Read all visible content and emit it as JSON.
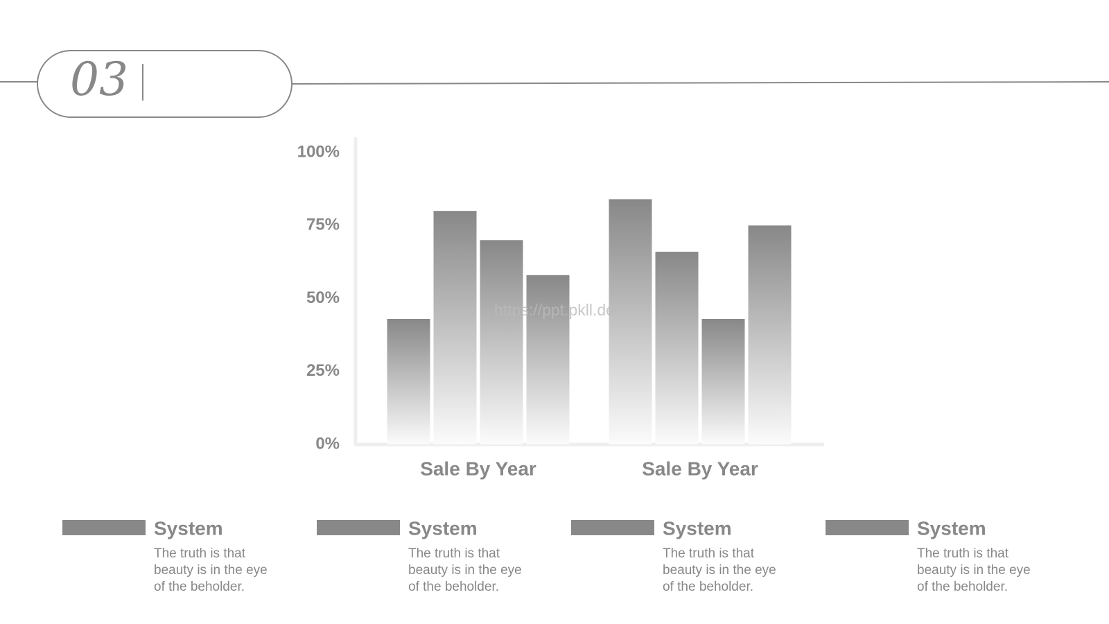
{
  "header": {
    "number": "03"
  },
  "watermark": "https://ppt.pkll.de",
  "chart_data": {
    "type": "bar",
    "categories": [
      "Sale By Year",
      "Sale By Year"
    ],
    "series": [
      {
        "name": "System",
        "color": "#888888",
        "values": [
          43,
          84
        ]
      },
      {
        "name": "System",
        "color": "#888888",
        "values": [
          80,
          66
        ]
      },
      {
        "name": "System",
        "color": "#888888",
        "values": [
          70,
          43
        ]
      },
      {
        "name": "System",
        "color": "#888888",
        "values": [
          58,
          75
        ]
      }
    ],
    "ylim": [
      0,
      100
    ],
    "yticks": [
      {
        "value": 0,
        "label": "0%"
      },
      {
        "value": 25,
        "label": "25%"
      },
      {
        "value": 50,
        "label": "50%"
      },
      {
        "value": 75,
        "label": "75%"
      },
      {
        "value": 100,
        "label": "100%"
      }
    ],
    "grid": false
  },
  "notes": [
    [
      "The truth is that",
      "beauty is in the eye",
      "of the beholder."
    ],
    [
      "The truth is that",
      "beauty is in the eye",
      "of the beholder."
    ],
    [
      "The truth is that",
      "beauty is in the eye",
      "of the beholder."
    ],
    [
      "The truth is that",
      "beauty is in the eye",
      "of the beholder."
    ]
  ]
}
